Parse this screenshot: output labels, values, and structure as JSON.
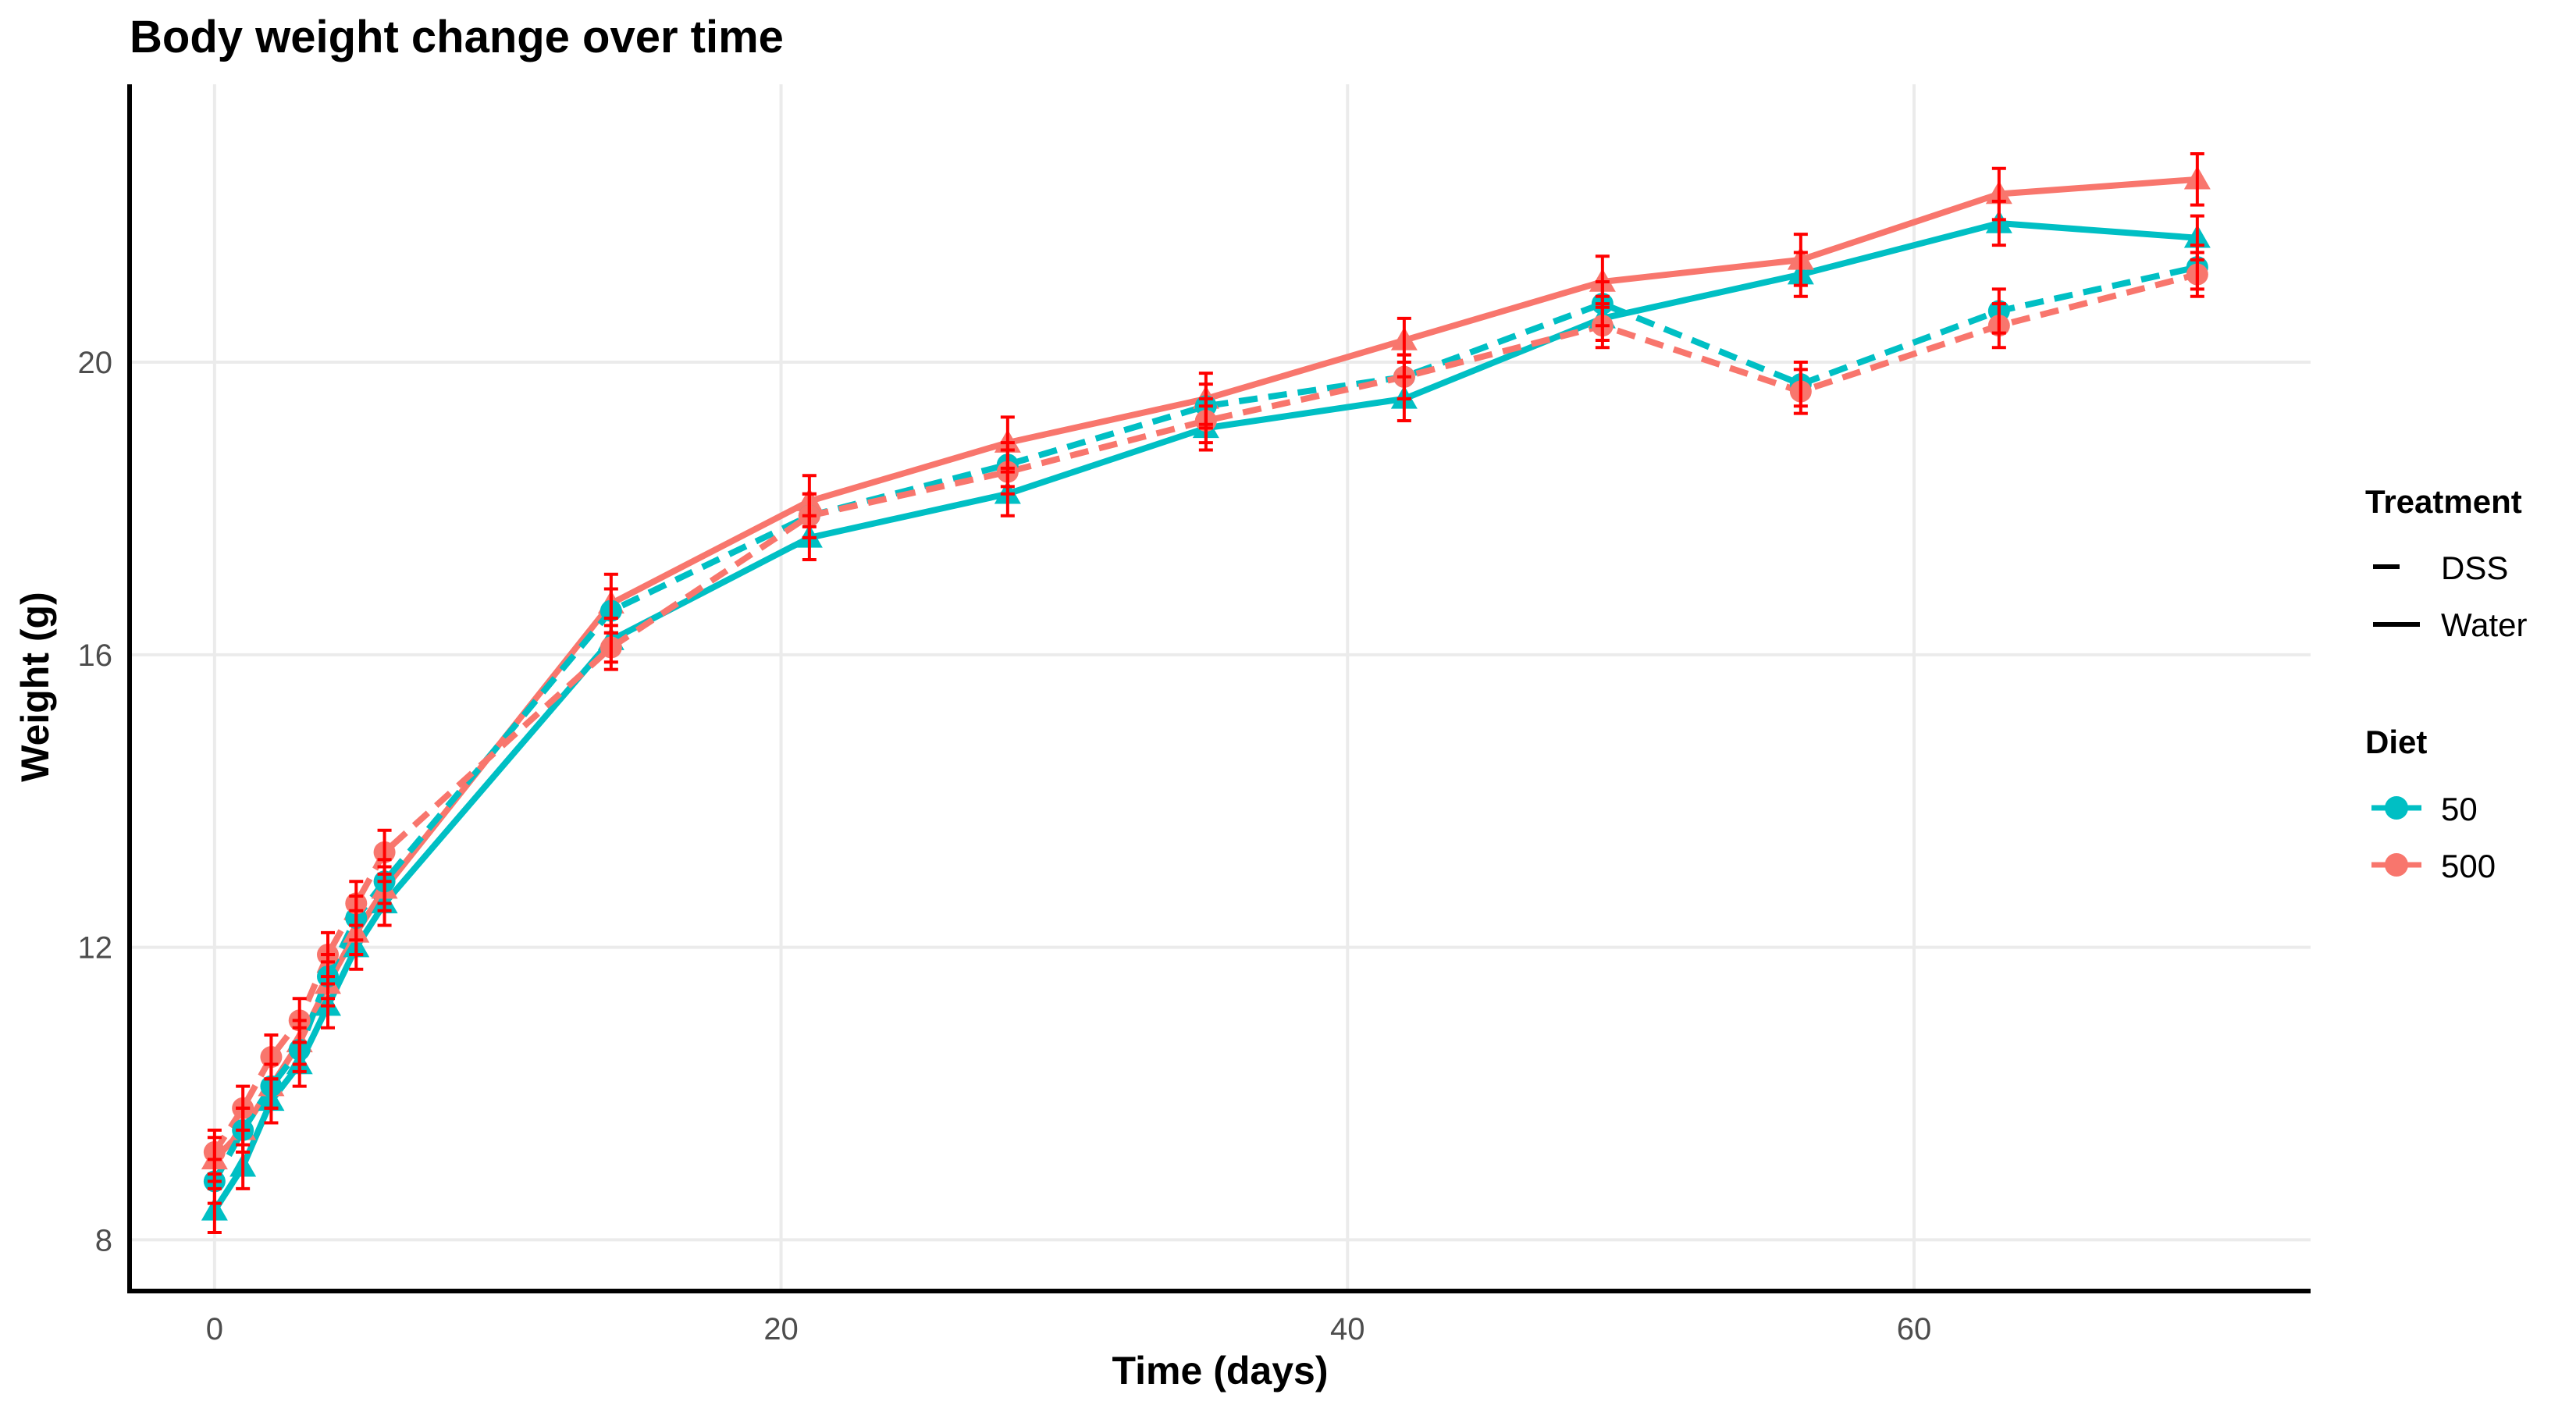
{
  "chart_data": {
    "type": "line",
    "title": "Body weight change over time",
    "xlabel": "Time (days)",
    "ylabel": "Weight (g)",
    "xlim": [
      -3,
      74
    ],
    "ylim": [
      7.3,
      23.8
    ],
    "x_ticks": [
      0,
      20,
      40,
      60
    ],
    "y_ticks": [
      8,
      12,
      16,
      20
    ],
    "grid": true,
    "legend_position": "right",
    "legends": [
      {
        "title": "Treatment",
        "entries": [
          {
            "label": "DSS",
            "linetype": "dashed"
          },
          {
            "label": "Water",
            "linetype": "solid"
          }
        ]
      },
      {
        "title": "Diet",
        "entries": [
          {
            "label": "50",
            "color": "#00BFC4"
          },
          {
            "label": "500",
            "color": "#F8766D"
          }
        ]
      }
    ],
    "colors": {
      "50": "#00BFC4",
      "500": "#F8766D",
      "error_bar": "#FF0000"
    },
    "x": [
      0,
      1,
      2,
      3,
      4,
      5,
      6,
      14,
      21,
      28,
      35,
      42,
      49,
      56,
      63,
      70
    ],
    "series": [
      {
        "diet": "50",
        "treatment": "Water",
        "marker": "triangle",
        "values": [
          8.4,
          9.0,
          9.9,
          10.4,
          11.2,
          12.0,
          12.6,
          16.2,
          17.6,
          18.2,
          19.1,
          19.5,
          20.6,
          21.2,
          21.9,
          21.7
        ],
        "error": [
          0.3,
          0.3,
          0.3,
          0.3,
          0.3,
          0.3,
          0.3,
          0.3,
          0.3,
          0.3,
          0.3,
          0.3,
          0.3,
          0.3,
          0.3,
          0.3
        ]
      },
      {
        "diet": "500",
        "treatment": "Water",
        "marker": "triangle",
        "values": [
          9.1,
          9.5,
          10.1,
          10.7,
          11.5,
          12.2,
          12.8,
          16.7,
          18.1,
          18.9,
          19.5,
          20.3,
          21.1,
          21.4,
          22.3,
          22.5
        ],
        "error": [
          0.3,
          0.3,
          0.3,
          0.3,
          0.3,
          0.3,
          0.3,
          0.4,
          0.35,
          0.35,
          0.35,
          0.3,
          0.35,
          0.35,
          0.35,
          0.35
        ]
      },
      {
        "diet": "50",
        "treatment": "DSS",
        "marker": "circle",
        "values": [
          8.8,
          9.5,
          10.1,
          10.6,
          11.6,
          12.4,
          12.9,
          16.6,
          17.9,
          18.6,
          19.4,
          19.8,
          20.8,
          19.7,
          20.7,
          21.3
        ],
        "error": [
          0.3,
          0.3,
          0.3,
          0.3,
          0.3,
          0.3,
          0.3,
          0.3,
          0.3,
          0.3,
          0.3,
          0.3,
          0.3,
          0.3,
          0.3,
          0.3
        ]
      },
      {
        "diet": "500",
        "treatment": "DSS",
        "marker": "circle",
        "values": [
          9.2,
          9.8,
          10.5,
          11.0,
          11.9,
          12.6,
          13.3,
          16.1,
          17.9,
          18.5,
          19.2,
          19.8,
          20.5,
          19.6,
          20.5,
          21.2
        ],
        "error": [
          0.3,
          0.3,
          0.3,
          0.3,
          0.3,
          0.3,
          0.3,
          0.3,
          0.3,
          0.3,
          0.3,
          0.3,
          0.3,
          0.3,
          0.3,
          0.3
        ]
      }
    ]
  }
}
